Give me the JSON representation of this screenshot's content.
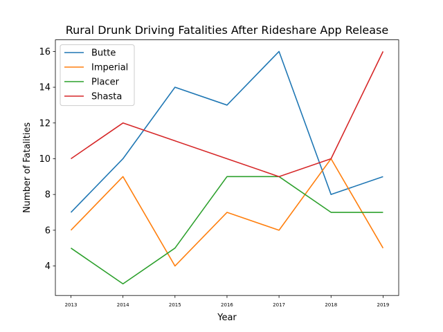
{
  "chart_data": {
    "type": "line",
    "title": "Rural Drunk Driving Fatalities After Rideshare App Release",
    "xlabel": "Year",
    "ylabel": "Number of Fatalities",
    "categories": [
      "2013",
      "2014",
      "2015",
      "2016",
      "2017",
      "2018",
      "2019"
    ],
    "y_ticks": [
      4,
      6,
      8,
      10,
      12,
      14,
      16
    ],
    "ylim": [
      2.35,
      16.65
    ],
    "legend_position": "top-left",
    "grid": false,
    "series": [
      {
        "name": "Butte",
        "color": "#1f77b4",
        "values": [
          7,
          10,
          14,
          13,
          16,
          8,
          9
        ]
      },
      {
        "name": "Imperial",
        "color": "#ff7f0e",
        "values": [
          6,
          9,
          4,
          7,
          6,
          10,
          5
        ]
      },
      {
        "name": "Placer",
        "color": "#2ca02c",
        "values": [
          5,
          3,
          5,
          9,
          9,
          7,
          7
        ]
      },
      {
        "name": "Shasta",
        "color": "#d62728",
        "values": [
          10,
          12,
          11,
          10,
          9,
          10,
          16
        ]
      }
    ]
  }
}
